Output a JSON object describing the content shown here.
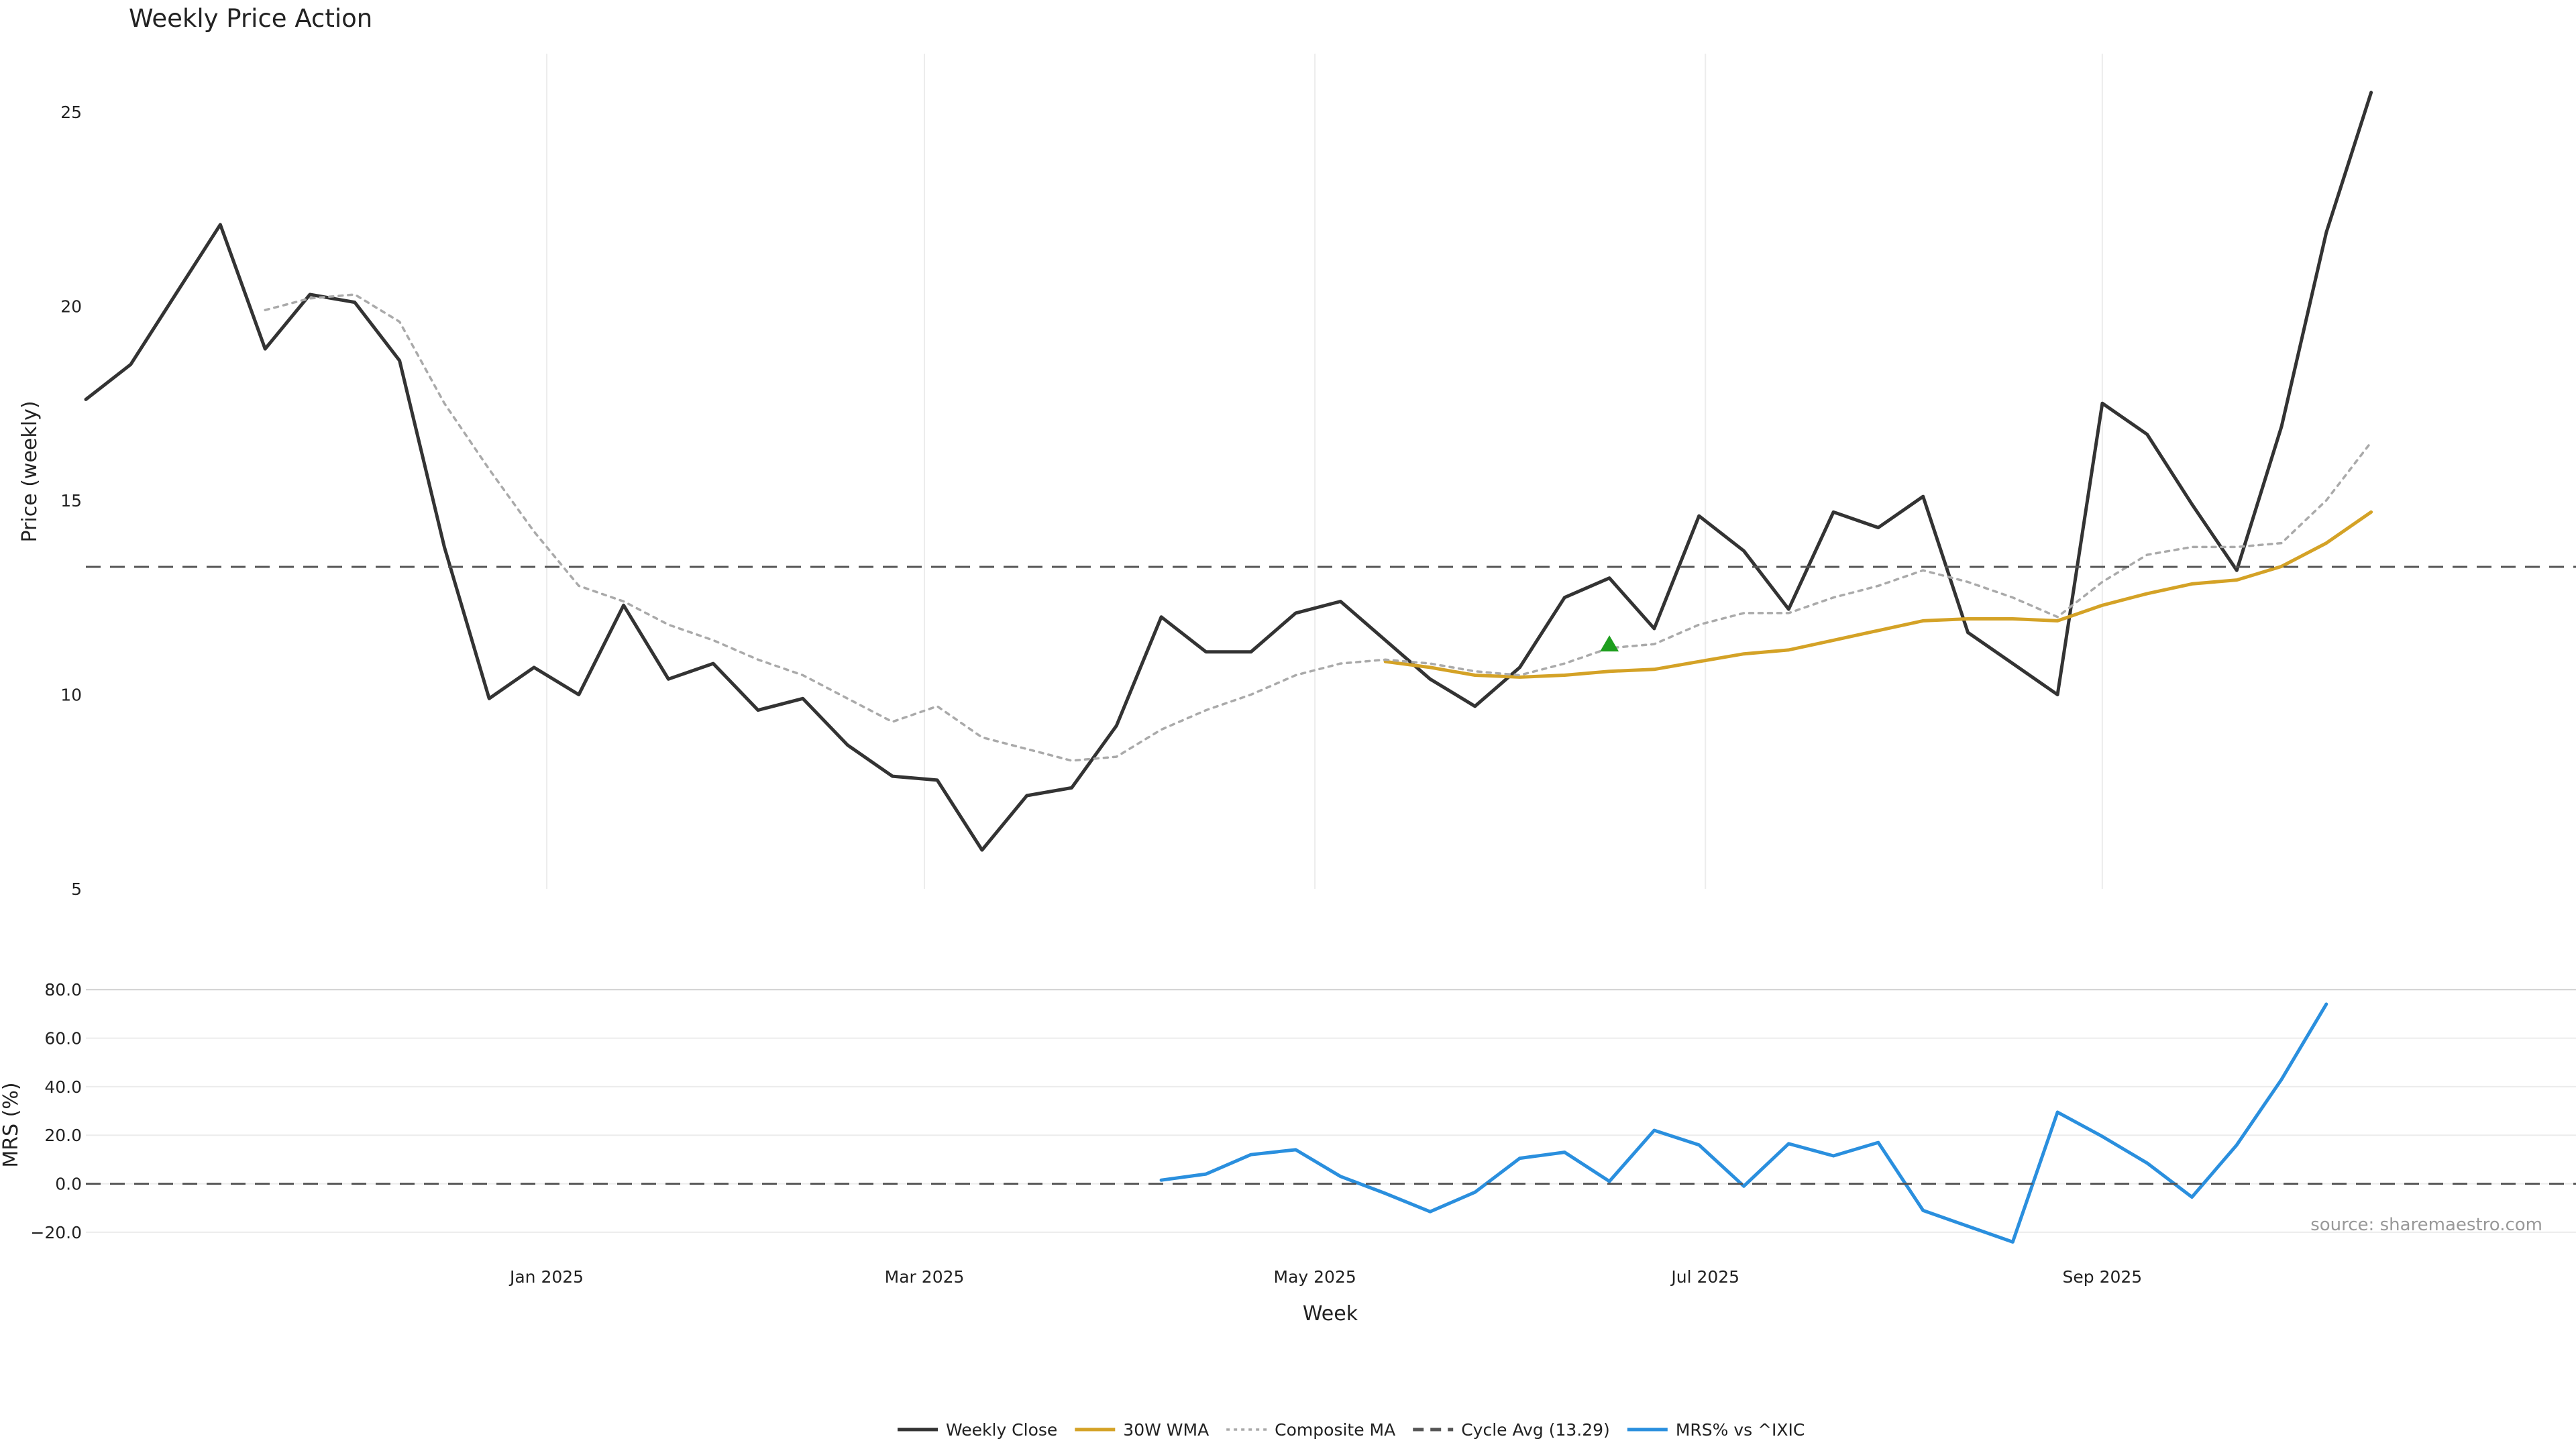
{
  "chart_data": [
    {
      "type": "line",
      "title": "Weekly Price Action",
      "ylabel": "Price (weekly)",
      "ylim": [
        5,
        26.5
      ],
      "yticks": [
        5,
        10,
        15,
        20,
        25
      ],
      "x_start": "2024-10-21",
      "x_step_days": 7,
      "xlim": [
        "2024-10-21",
        "2025-11-14"
      ],
      "xticks": [
        {
          "date": "2025-01-01",
          "label": "Jan 2025"
        },
        {
          "date": "2025-03-01",
          "label": "Mar 2025"
        },
        {
          "date": "2025-05-01",
          "label": "May 2025"
        },
        {
          "date": "2025-07-01",
          "label": "Jul 2025"
        },
        {
          "date": "2025-09-01",
          "label": "Sep 2025"
        }
      ],
      "grid": "x",
      "series": [
        {
          "name": "Weekly Close",
          "color": "#333333",
          "style": "solid",
          "values": [
            17.6,
            18.5,
            20.3,
            22.1,
            18.9,
            20.3,
            20.1,
            18.6,
            13.8,
            9.9,
            10.7,
            10.0,
            12.3,
            10.4,
            10.8,
            9.6,
            9.9,
            8.7,
            7.9,
            7.8,
            6.0,
            7.4,
            7.6,
            9.2,
            12.0,
            11.1,
            11.1,
            12.1,
            12.4,
            11.4,
            10.4,
            9.7,
            10.7,
            12.5,
            13.0,
            11.7,
            14.6,
            13.7,
            12.2,
            14.7,
            14.3,
            15.1,
            11.6,
            10.8,
            10.0,
            17.5,
            16.7,
            14.9,
            13.2,
            16.9,
            21.9,
            25.5
          ]
        },
        {
          "name": "30W WMA",
          "color": "#d4a226",
          "style": "solid",
          "values": [
            null,
            null,
            null,
            null,
            null,
            null,
            null,
            null,
            null,
            null,
            null,
            null,
            null,
            null,
            null,
            null,
            null,
            null,
            null,
            null,
            null,
            null,
            null,
            null,
            null,
            null,
            null,
            null,
            null,
            10.85,
            10.7,
            10.5,
            10.45,
            10.5,
            10.6,
            10.65,
            10.85,
            11.05,
            11.15,
            11.4,
            11.65,
            11.9,
            11.95,
            11.95,
            11.9,
            12.3,
            12.6,
            12.85,
            12.95,
            13.3,
            13.9,
            14.7
          ]
        },
        {
          "name": "Composite MA",
          "color": "#aaaaaa",
          "style": "dotted",
          "values": [
            null,
            null,
            null,
            null,
            19.9,
            20.2,
            20.3,
            19.6,
            17.5,
            15.8,
            14.2,
            12.8,
            12.4,
            11.8,
            11.4,
            10.9,
            10.5,
            9.9,
            9.3,
            9.7,
            8.9,
            8.6,
            8.3,
            8.4,
            9.1,
            9.6,
            10.0,
            10.5,
            10.8,
            10.9,
            10.8,
            10.6,
            10.5,
            10.8,
            11.2,
            11.3,
            11.8,
            12.1,
            12.1,
            12.5,
            12.8,
            13.2,
            12.9,
            12.5,
            12.0,
            12.9,
            13.6,
            13.8,
            13.8,
            13.9,
            15.0,
            16.5
          ]
        },
        {
          "name": "Cycle Avg (13.29)",
          "color": "#555555",
          "style": "dashed",
          "constant": 13.29
        }
      ],
      "annotations": [
        {
          "type": "marker",
          "shape": "triangle-up",
          "color": "#1e9e1e",
          "x_index": 34,
          "y": 11.3
        }
      ]
    },
    {
      "type": "line",
      "ylabel": "MRS (%)",
      "xlabel": "Week",
      "ylim": [
        -25,
        82
      ],
      "yticks": [
        -20,
        0,
        20,
        40,
        60,
        80
      ],
      "ytick_labels": [
        "−20.0",
        "0.0",
        "20.0",
        "40.0",
        "60.0",
        "80.0"
      ],
      "grid": "y",
      "series": [
        {
          "name": "MRS% vs ^IXIC",
          "color": "#2a8fde",
          "style": "solid",
          "values": [
            null,
            null,
            null,
            null,
            null,
            null,
            null,
            null,
            null,
            null,
            null,
            null,
            null,
            null,
            null,
            null,
            null,
            null,
            null,
            null,
            null,
            null,
            null,
            null,
            1.5,
            4.0,
            12.0,
            14.0,
            3.0,
            -4.0,
            -11.5,
            -3.5,
            10.5,
            13.0,
            1.0,
            22.0,
            16.0,
            -1.0,
            16.5,
            11.5,
            17.0,
            -11.0,
            -17.5,
            -24.0,
            29.5,
            19.5,
            8.5,
            -5.5,
            16.0,
            43.0,
            74.0
          ]
        },
        {
          "name": "",
          "color": "#555555",
          "style": "dashed",
          "constant": 0
        }
      ],
      "annotations": [
        {
          "type": "text",
          "text": "source: sharemaestro.com"
        }
      ]
    }
  ],
  "legend": {
    "position": "bottom-center",
    "items": [
      {
        "label": "Weekly Close",
        "color": "#333333",
        "style": "solid"
      },
      {
        "label": "30W WMA",
        "color": "#d4a226",
        "style": "solid"
      },
      {
        "label": "Composite MA",
        "color": "#aaaaaa",
        "style": "dotted"
      },
      {
        "label": "Cycle Avg (13.29)",
        "color": "#555555",
        "style": "dashed"
      },
      {
        "label": "MRS% vs ^IXIC",
        "color": "#2a8fde",
        "style": "solid"
      }
    ]
  }
}
